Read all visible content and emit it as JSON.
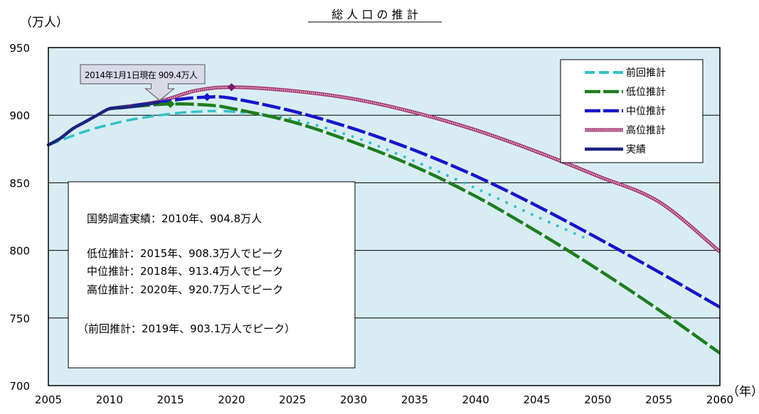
{
  "chart_data": {
    "type": "line",
    "title": "総 人 口 の 推 計",
    "ylabel": "（万人）",
    "xlabel": "（年）",
    "xlim": [
      2005,
      2060
    ],
    "ylim": [
      700,
      950
    ],
    "x_ticks": [
      2005,
      2010,
      2015,
      2020,
      2025,
      2030,
      2035,
      2040,
      2045,
      2050,
      2055,
      2060
    ],
    "y_ticks": [
      700,
      750,
      800,
      850,
      900,
      950
    ],
    "grid": "horizontal",
    "legend_position": "top-right",
    "series": [
      {
        "name": "前回推計",
        "color": "#33C2C8",
        "style": "dash-to-dot",
        "dash_until_x": 2024,
        "points": [
          [
            2005,
            878
          ],
          [
            2008,
            888
          ],
          [
            2010,
            893
          ],
          [
            2012,
            897
          ],
          [
            2015,
            901
          ],
          [
            2017,
            902.5
          ],
          [
            2019,
            903.1
          ],
          [
            2021,
            902
          ],
          [
            2025,
            897
          ],
          [
            2030,
            884
          ],
          [
            2035,
            866
          ],
          [
            2040,
            846
          ],
          [
            2045,
            825
          ],
          [
            2049,
            809
          ]
        ]
      },
      {
        "name": "低位推計",
        "color": "#1E7D1E",
        "style": "dashed",
        "points": [
          [
            2010,
            904.8
          ],
          [
            2012,
            906.5
          ],
          [
            2015,
            908.3
          ],
          [
            2018,
            907.5
          ],
          [
            2020,
            905
          ],
          [
            2025,
            895
          ],
          [
            2030,
            880
          ],
          [
            2035,
            862
          ],
          [
            2040,
            840
          ],
          [
            2045,
            814
          ],
          [
            2050,
            786
          ],
          [
            2055,
            756
          ],
          [
            2060,
            724
          ]
        ]
      },
      {
        "name": "中位推計",
        "color": "#1515CC",
        "style": "dashed",
        "points": [
          [
            2010,
            904.8
          ],
          [
            2014,
            909.4
          ],
          [
            2016,
            912
          ],
          [
            2018,
            913.4
          ],
          [
            2020,
            912.5
          ],
          [
            2025,
            903
          ],
          [
            2030,
            890
          ],
          [
            2035,
            874
          ],
          [
            2040,
            855
          ],
          [
            2045,
            833
          ],
          [
            2050,
            809
          ],
          [
            2055,
            784
          ],
          [
            2060,
            758
          ]
        ]
      },
      {
        "name": "高位推計",
        "color": "#A0306A",
        "style": "hatched",
        "points": [
          [
            2010,
            904.8
          ],
          [
            2014,
            910
          ],
          [
            2017,
            918
          ],
          [
            2020,
            920.7
          ],
          [
            2025,
            918
          ],
          [
            2030,
            912
          ],
          [
            2035,
            902
          ],
          [
            2040,
            889
          ],
          [
            2045,
            873
          ],
          [
            2050,
            855
          ],
          [
            2055,
            836
          ],
          [
            2060,
            799
          ]
        ]
      },
      {
        "name": "実績",
        "color": "#1A237E",
        "style": "solid",
        "points": [
          [
            2005,
            878
          ],
          [
            2006,
            883
          ],
          [
            2007,
            890
          ],
          [
            2008,
            895
          ],
          [
            2009,
            900
          ],
          [
            2010,
            904.8
          ],
          [
            2011,
            905.5
          ],
          [
            2012,
            906.5
          ],
          [
            2013,
            908
          ],
          [
            2014,
            909.4
          ]
        ]
      }
    ],
    "peak_markers": [
      {
        "series": "低位推計",
        "x": 2015,
        "y": 908.3,
        "color": "#1E7D1E"
      },
      {
        "series": "中位推計",
        "x": 2018,
        "y": 913.4,
        "color": "#1515CC"
      },
      {
        "series": "高位推計",
        "x": 2020,
        "y": 920.7,
        "color": "#7A1A6A"
      },
      {
        "series": "前回推計",
        "x": 2019,
        "y": 903.1,
        "color": "#FFFFFF"
      }
    ],
    "callout": {
      "text": "2014年1月1日現在 909.4万人",
      "anchor_x": 2014,
      "anchor_y": 909.4
    },
    "annotation_box": {
      "lines": [
        "国勢調査実績：2010年、904.8万人",
        "",
        "低位推計：2015年、908.3万人でピーク",
        "中位推計：2018年、913.4万人でピーク",
        "高位推計：2020年、920.7万人でピーク",
        "",
        "（前回推計：2019年、903.1万人でピーク）"
      ]
    },
    "colors": {
      "plot_background": "#D8EDF3",
      "grid": "#000000"
    }
  }
}
